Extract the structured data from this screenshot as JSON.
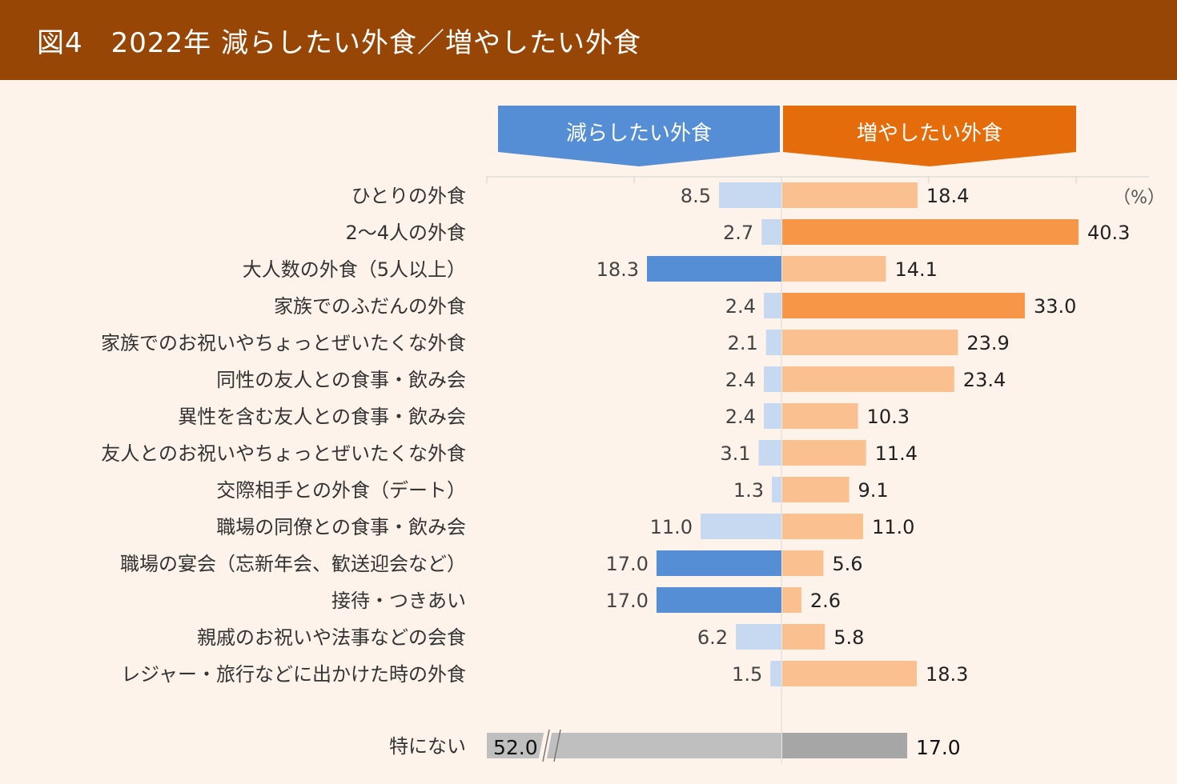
{
  "title": "図4　2022年 減らしたい外食／増やしたい外食",
  "chart_data": {
    "type": "bar",
    "orientation": "horizontal-diverging",
    "unit_label": "（%）",
    "series": [
      {
        "name": "減らしたい外食",
        "color": "#558ed5",
        "light_color": "#c6d9f1",
        "direction": "left"
      },
      {
        "name": "増やしたい外食",
        "color": "#e46c0a",
        "bar_color": "#f79646",
        "light_color": "#fac090",
        "direction": "right"
      }
    ],
    "categories": [
      "ひとりの外食",
      "2～4人の外食",
      "大人数の外食（5人以上）",
      "家族でのふだんの外食",
      "家族でのお祝いやちょっとぜいたくな外食",
      "同性の友人との食事・飲み会",
      "異性を含む友人との食事・飲み会",
      "友人とのお祝いやちょっとぜいたくな外食",
      "交際相手との外食（デート）",
      "職場の同僚との食事・飲み会",
      "職場の宴会（忘新年会、歓送迎会など）",
      "接待・つきあい",
      "親戚のお祝いや法事などの会食",
      "レジャー・旅行などに出かけた時の外食"
    ],
    "decrease": [
      8.5,
      2.7,
      18.3,
      2.4,
      2.1,
      2.4,
      2.4,
      3.1,
      1.3,
      11.0,
      17.0,
      17.0,
      6.2,
      1.5
    ],
    "increase": [
      18.4,
      40.3,
      14.1,
      33.0,
      23.9,
      23.4,
      10.3,
      11.4,
      9.1,
      11.0,
      5.6,
      2.6,
      5.8,
      18.3
    ],
    "decrease_highlight": [
      false,
      false,
      true,
      false,
      false,
      false,
      false,
      false,
      false,
      false,
      true,
      true,
      false,
      false
    ],
    "increase_highlight": [
      false,
      true,
      false,
      true,
      false,
      false,
      false,
      false,
      false,
      false,
      false,
      false,
      false,
      false
    ],
    "none_row": {
      "label": "特にない",
      "decrease": 52.0,
      "increase": 17.0,
      "axis_break": true,
      "left_color": "#bfbfbf",
      "right_color": "#a6a6a6"
    },
    "axis_range": [
      -40,
      50
    ],
    "tick_step": 20,
    "grid": false
  }
}
